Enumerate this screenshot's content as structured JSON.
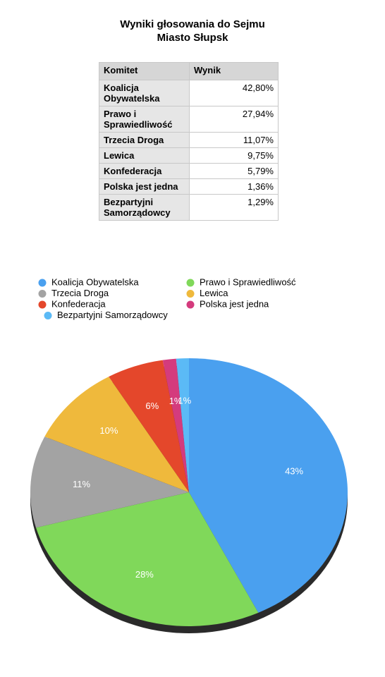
{
  "title": "Wyniki głosowania do Sejmu",
  "subtitle": "Miasto Słupsk",
  "table": {
    "headers": [
      "Komitet",
      "Wynik"
    ],
    "rows": [
      [
        "Koalicja Obywatelska",
        "42,80%"
      ],
      [
        "Prawo i Sprawiedliwość",
        "27,94%"
      ],
      [
        "Trzecia Droga",
        "11,07%"
      ],
      [
        "Lewica",
        "9,75%"
      ],
      [
        "Konfederacja",
        "5,79%"
      ],
      [
        "Polska jest jedna",
        "1,36%"
      ],
      [
        "Bezpartyjni Samorządowcy",
        "1,29%"
      ]
    ]
  },
  "chart_data": {
    "type": "pie",
    "categories": [
      "Koalicja Obywatelska",
      "Prawo i Sprawiedliwość",
      "Trzecia Droga",
      "Lewica",
      "Konfederacja",
      "Polska jest jedna",
      "Bezpartyjni Samorządowcy"
    ],
    "values": [
      42.8,
      27.94,
      11.07,
      9.75,
      5.79,
      1.36,
      1.29
    ],
    "value_labels": [
      "43%",
      "28%",
      "11%",
      "10%",
      "6%",
      "1%",
      "1%"
    ],
    "colors": [
      "#4aa0ef",
      "#80d85a",
      "#a3a3a3",
      "#efb93c",
      "#e4472b",
      "#d43b7d",
      "#5bbaf6"
    ]
  }
}
